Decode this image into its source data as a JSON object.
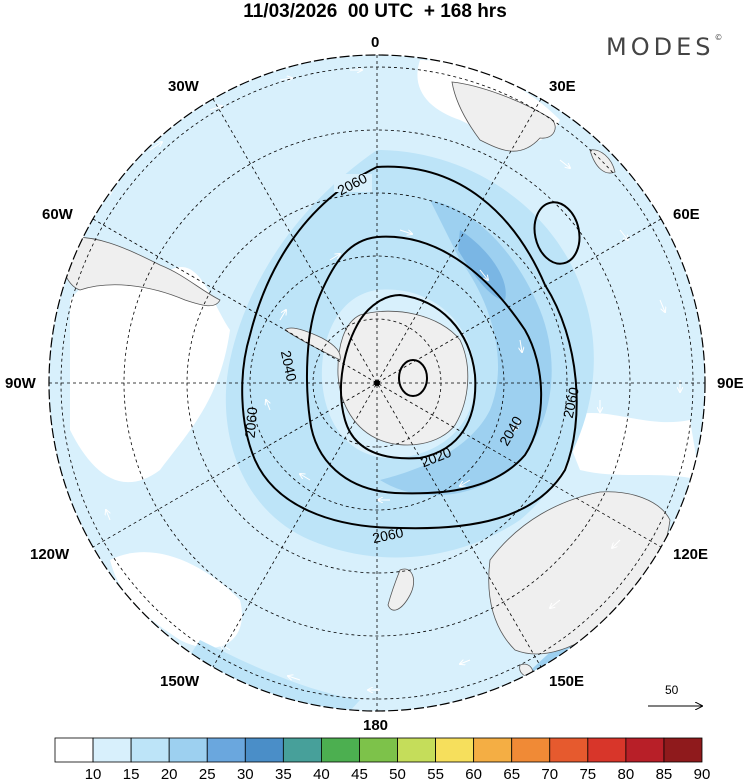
{
  "header": {
    "title": "11/03/2026  00 UTC  + 168 hrs",
    "brand": "MODES",
    "brand_mark": "©"
  },
  "map": {
    "projection": "south-polar-stereographic",
    "longitude_labels": {
      "lon_0": "0",
      "lon_30e": "30E",
      "lon_60e": "60E",
      "lon_90e": "90E",
      "lon_120e": "120E",
      "lon_150e": "150E",
      "lon_180": "180",
      "lon_150w": "150W",
      "lon_120w": "120W",
      "lon_90w": "90W",
      "lon_60w": "60W",
      "lon_30w": "30W"
    },
    "contour_labels": {
      "c2060_top": "2060",
      "c2060_left": "2060",
      "c2060_bottom": "2060",
      "c2060_right": "2060",
      "c2040_left": "2040",
      "c2040_right": "2040",
      "c2020_bottom": "2020"
    },
    "colors": {
      "shade_10_15": "#d8f0fc",
      "shade_15_20": "#bde4f8",
      "shade_20_25": "#9dd0f0",
      "shade_25_30": "#7ab6e4",
      "land": "#efefef",
      "contour": "#000000"
    },
    "reference_vector_label": "50"
  },
  "colorbar": {
    "labels": [
      "10",
      "15",
      "20",
      "25",
      "30",
      "35",
      "40",
      "45",
      "50",
      "55",
      "60",
      "65",
      "70",
      "75",
      "80",
      "85",
      "90"
    ],
    "colors": [
      "#ffffff",
      "#d8f0fc",
      "#bde4f8",
      "#9dd0f0",
      "#6aa7de",
      "#4a8ec8",
      "#47a09a",
      "#4caf50",
      "#7dc24a",
      "#c5dd5a",
      "#f6df5c",
      "#f4ae44",
      "#f08a36",
      "#e65a2e",
      "#d8362a",
      "#b81f28",
      "#8f1a1c"
    ]
  }
}
